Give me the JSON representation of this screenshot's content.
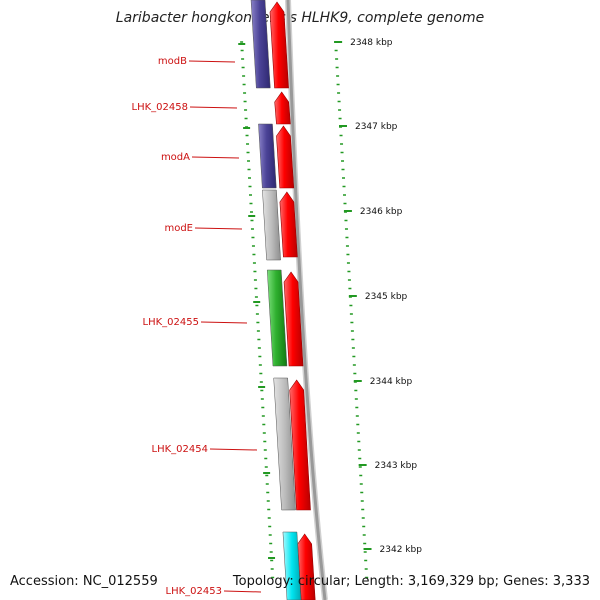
{
  "title": "Laribacter hongkongensis HLHK9, complete genome",
  "footer": {
    "accession": "Accession: NC_012559",
    "topology": "Topology: circular; Length: 3,169,329 bp; Genes: 3,333"
  },
  "colors": {
    "gene_label": "#cc1111",
    "forward_cds": "#ff0000",
    "backbone": "#999999",
    "tick": "#229922",
    "purple_gene": "#5a4fa0",
    "gray_gene": "#bdbdbd",
    "green_gene": "#3cb83c",
    "cyan_gene": "#00e5f0"
  },
  "ruler_labels": [
    "2348 kbp",
    "2347 kbp",
    "2346 kbp",
    "2345 kbp",
    "2344 kbp",
    "2343 kbp",
    "2342 kbp"
  ],
  "genes": [
    {
      "label": "modB",
      "color_key": "purple_gene"
    },
    {
      "label": "LHK_02458",
      "color_key": "none"
    },
    {
      "label": "modA",
      "color_key": "purple_gene"
    },
    {
      "label": "modE",
      "color_key": "gray_gene"
    },
    {
      "label": "LHK_02455",
      "color_key": "green_gene"
    },
    {
      "label": "LHK_02454",
      "color_key": "gray_gene"
    },
    {
      "label": "LHK_02453",
      "color_key": "cyan_gene"
    }
  ]
}
